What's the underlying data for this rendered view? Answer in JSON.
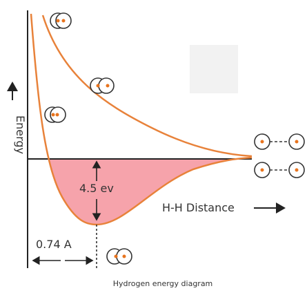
{
  "axis_label_y": "Energy",
  "axis_label_x": "H-H Distance",
  "energy_label": "4.5 ev",
  "distance_label": "0.74 A",
  "caption": "Hydrogen energy diagram"
}
